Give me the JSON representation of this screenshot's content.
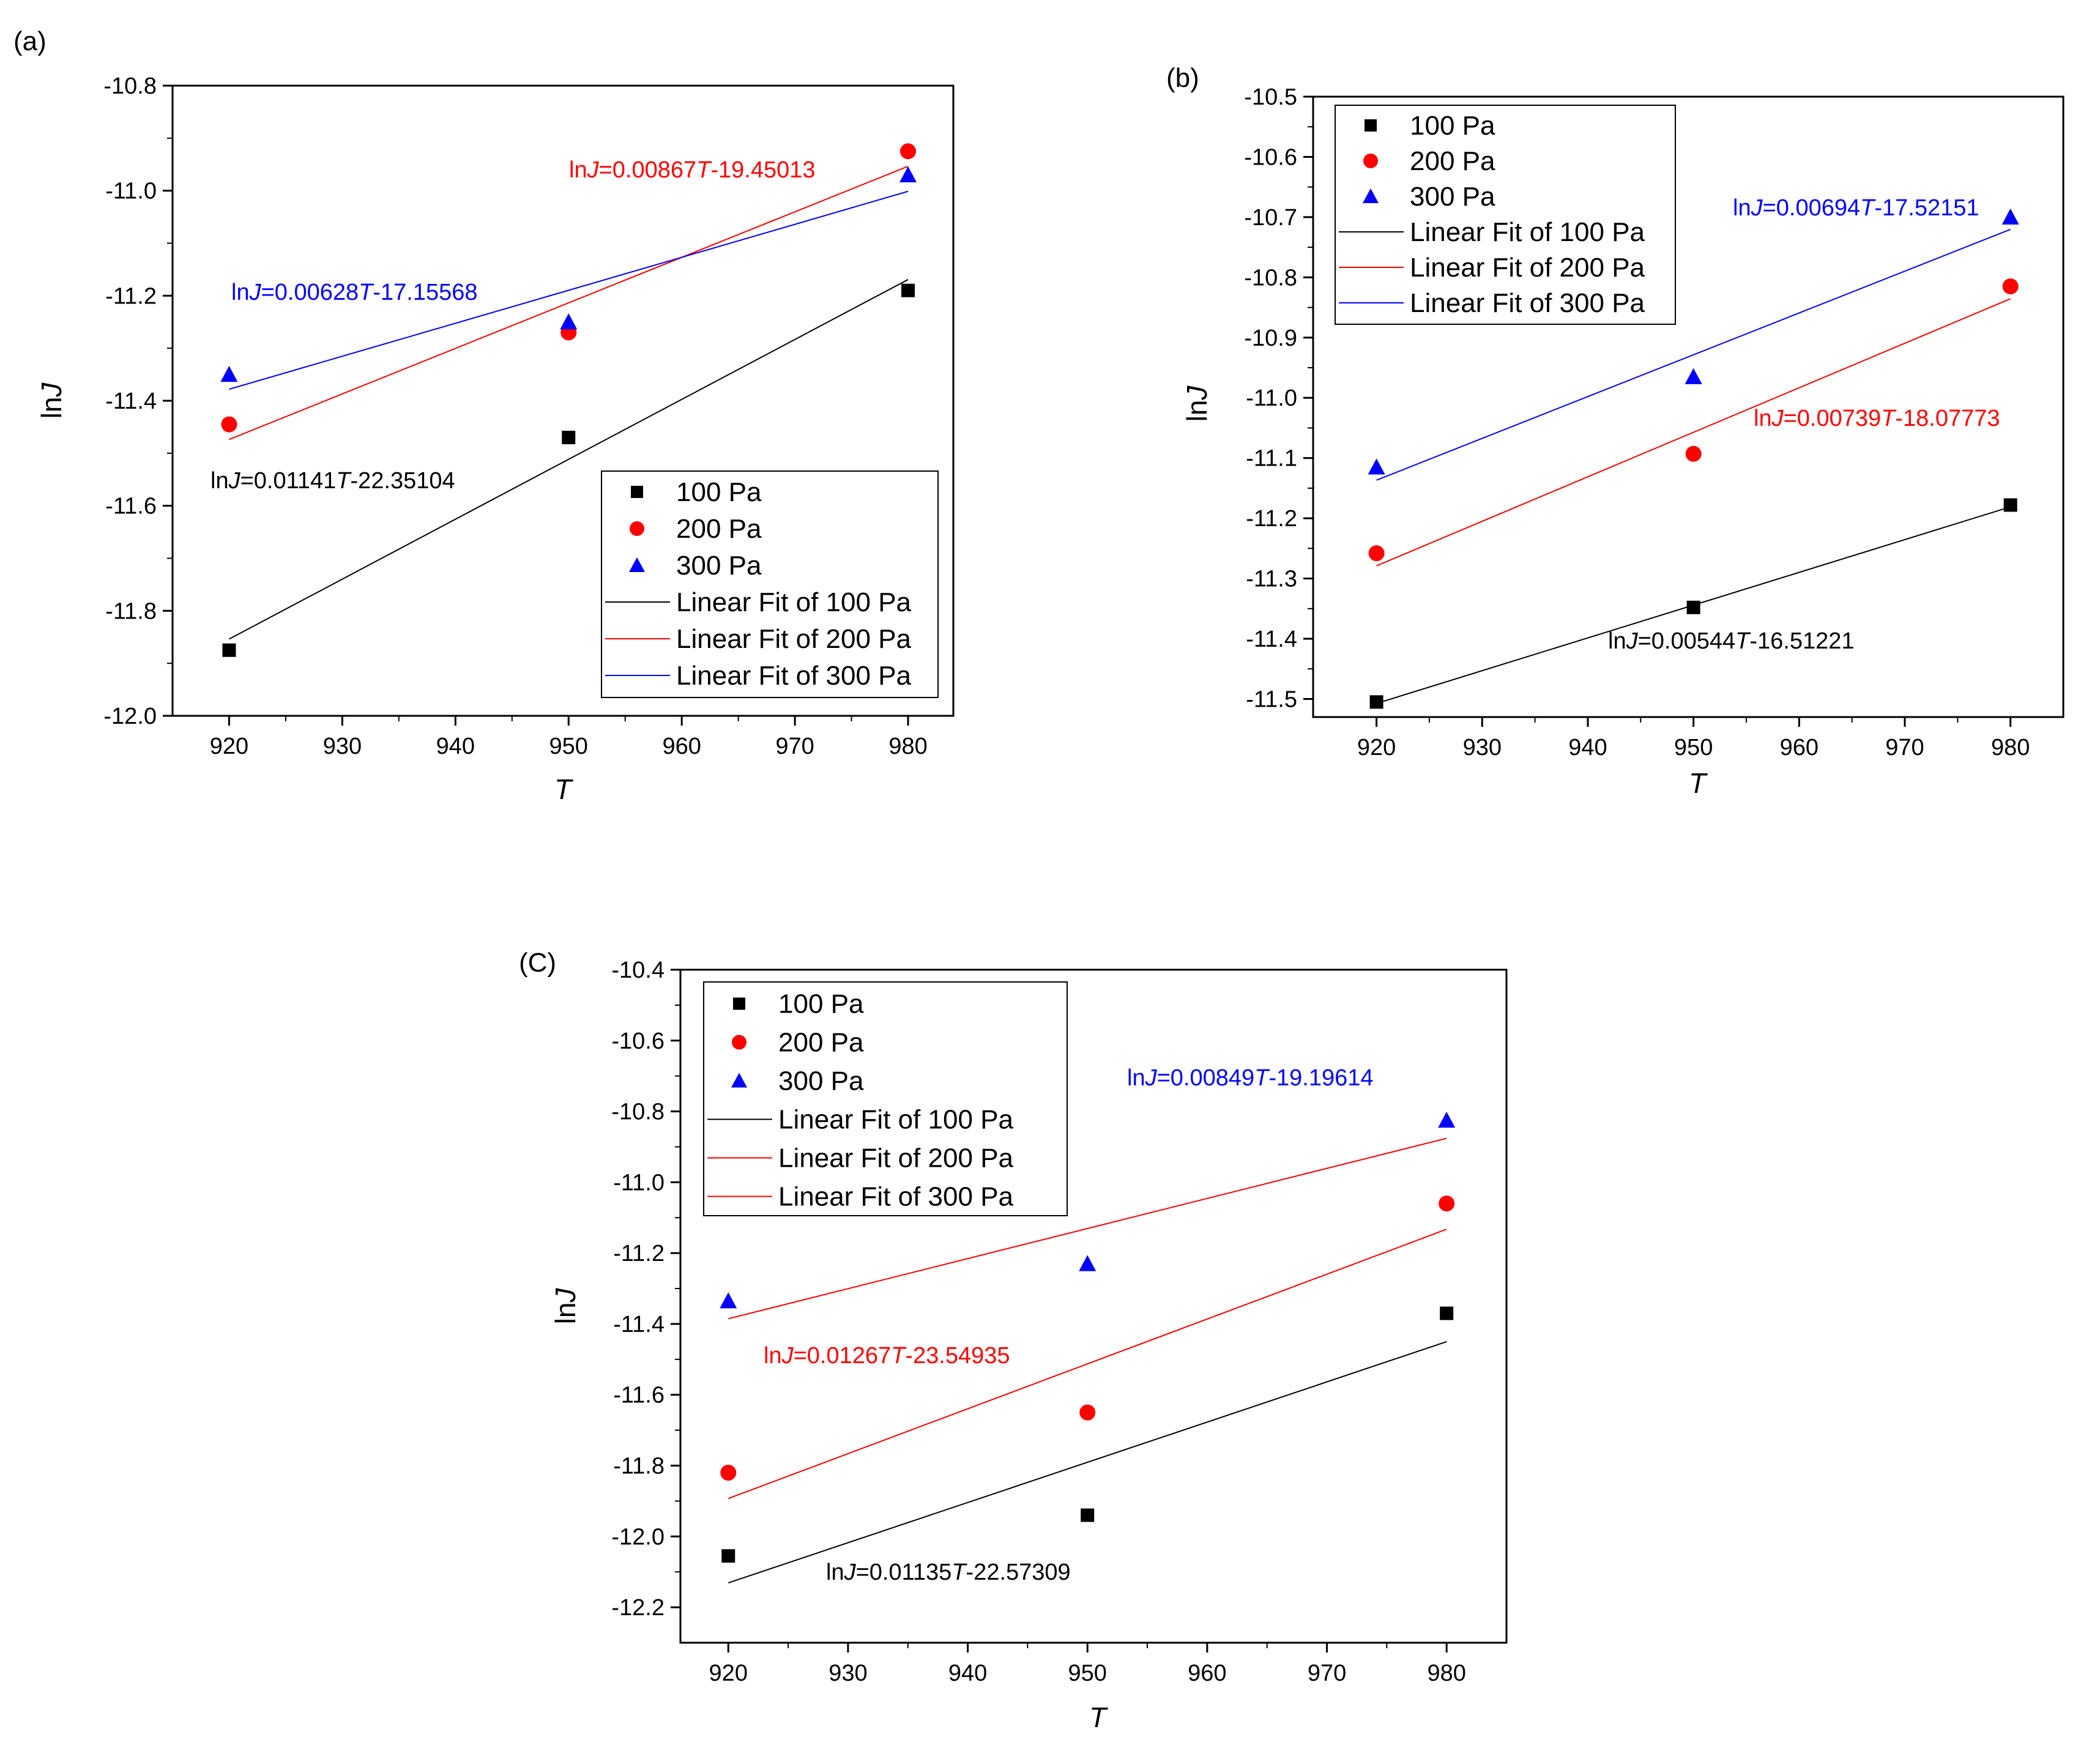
{
  "chart_data": [
    {
      "type": "scatter",
      "panel_label": "(a)",
      "xlabel": "T",
      "ylabel_main": "ln",
      "ylabel_italic": "J",
      "xlim": [
        915,
        984
      ],
      "ylim": [
        -12.0,
        -10.8
      ],
      "x_ticks": [
        920,
        930,
        940,
        950,
        960,
        970,
        980
      ],
      "y_ticks": [
        -12.0,
        -11.8,
        -11.6,
        -11.4,
        -11.2,
        -11.0,
        -10.8
      ],
      "legend_position": "bottom-right",
      "series": [
        {
          "name": "100 Pa",
          "marker": "square",
          "color": "#000000",
          "x": [
            920,
            950,
            980
          ],
          "y": [
            -11.875,
            -11.47,
            -11.19
          ]
        },
        {
          "name": "200 Pa",
          "marker": "circle",
          "color": "#ff0000",
          "x": [
            920,
            950,
            980
          ],
          "y": [
            -11.445,
            -11.27,
            -10.925
          ]
        },
        {
          "name": "300 Pa",
          "marker": "triangle",
          "color": "#0000ff",
          "x": [
            920,
            950,
            980
          ],
          "y": [
            -11.35,
            -11.25,
            -10.97
          ]
        }
      ],
      "fits": [
        {
          "name": "Linear Fit of 100 Pa",
          "color": "#000000",
          "slope": 0.01141,
          "intercept": -22.35104,
          "x_range": [
            920,
            980
          ]
        },
        {
          "name": "Linear Fit of 200 Pa",
          "color": "#ff0000",
          "slope": 0.00867,
          "intercept": -19.45013,
          "x_range": [
            920,
            980
          ]
        },
        {
          "name": "Linear Fit of 300 Pa",
          "color": "#0000ff",
          "slope": 0.00628,
          "intercept": -17.15568,
          "x_range": [
            920,
            980
          ]
        }
      ],
      "annotations": [
        {
          "prefix": "ln",
          "v1": "J",
          "mid": "=0.00867",
          "v2": "T",
          "suffix": "-19.45013",
          "color": "#ff0000"
        },
        {
          "prefix": "ln",
          "v1": "J",
          "mid": "=0.00628",
          "v2": "T",
          "suffix": "-17.15568",
          "color": "#0000ff"
        },
        {
          "prefix": "ln",
          "v1": "J",
          "mid": "=0.01141",
          "v2": "T",
          "suffix": "-22.35104",
          "color": "#000000"
        }
      ]
    },
    {
      "type": "scatter",
      "panel_label": "(b)",
      "xlabel": "T",
      "ylabel_main": "ln",
      "ylabel_italic": "J",
      "xlim": [
        914,
        985
      ],
      "ylim": [
        -11.53,
        -10.5
      ],
      "x_ticks": [
        920,
        930,
        940,
        950,
        960,
        970,
        980
      ],
      "y_ticks": [
        -11.5,
        -11.4,
        -11.3,
        -11.2,
        -11.1,
        -11.0,
        -10.9,
        -10.8,
        -10.7,
        -10.6,
        -10.5
      ],
      "legend_position": "top-left",
      "series": [
        {
          "name": "100 Pa",
          "marker": "square",
          "color": "#000000",
          "x": [
            920,
            950,
            980
          ],
          "y": [
            -11.505,
            -11.348,
            -11.178
          ]
        },
        {
          "name": "200 Pa",
          "marker": "circle",
          "color": "#ff0000",
          "x": [
            920,
            950,
            980
          ],
          "y": [
            -11.258,
            -11.093,
            -10.815
          ]
        },
        {
          "name": "300 Pa",
          "marker": "triangle",
          "color": "#0000ff",
          "x": [
            920,
            950,
            980
          ],
          "y": [
            -11.115,
            -10.965,
            -10.7
          ]
        }
      ],
      "fits": [
        {
          "name": "Linear Fit of 100 Pa",
          "color": "#000000",
          "slope": 0.00544,
          "intercept": -16.51221,
          "x_range": [
            920,
            980
          ]
        },
        {
          "name": "Linear Fit of 200 Pa",
          "color": "#ff0000",
          "slope": 0.00739,
          "intercept": -18.07773,
          "x_range": [
            920,
            980
          ]
        },
        {
          "name": "Linear Fit of 300 Pa",
          "color": "#0000ff",
          "slope": 0.00694,
          "intercept": -17.52151,
          "x_range": [
            920,
            980
          ]
        }
      ],
      "annotations": [
        {
          "prefix": "ln",
          "v1": "J",
          "mid": "=0.00694",
          "v2": "T",
          "suffix": "-17.52151",
          "color": "#0000ff"
        },
        {
          "prefix": "ln",
          "v1": "J",
          "mid": "=0.00739",
          "v2": "T",
          "suffix": "-18.07773",
          "color": "#ff0000"
        },
        {
          "prefix": "ln",
          "v1": "J",
          "mid": "=0.00544",
          "v2": "T",
          "suffix": "-16.51221",
          "color": "#000000"
        }
      ]
    },
    {
      "type": "scatter",
      "panel_label": "(C)",
      "xlabel": "T",
      "ylabel_main": "ln",
      "ylabel_italic": "J",
      "xlim": [
        916,
        985
      ],
      "ylim": [
        -12.3,
        -10.4
      ],
      "x_ticks": [
        920,
        930,
        940,
        950,
        960,
        970,
        980
      ],
      "y_ticks": [
        -12.2,
        -12.0,
        -11.8,
        -11.6,
        -11.4,
        -11.2,
        -11.0,
        -10.8,
        -10.6,
        -10.4
      ],
      "legend_position": "top-left",
      "series": [
        {
          "name": "100 Pa",
          "marker": "square",
          "color": "#000000",
          "x": [
            920,
            950,
            980
          ],
          "y": [
            -12.055,
            -11.94,
            -11.37
          ]
        },
        {
          "name": "200 Pa",
          "marker": "circle",
          "color": "#ff0000",
          "x": [
            920,
            950,
            980
          ],
          "y": [
            -11.82,
            -11.65,
            -11.06
          ]
        },
        {
          "name": "300 Pa",
          "marker": "triangle",
          "color": "#0000ff",
          "x": [
            920,
            950,
            980
          ],
          "y": [
            -11.335,
            -11.23,
            -10.825
          ]
        }
      ],
      "fits": [
        {
          "name": "Linear Fit of 100 Pa",
          "color": "#000000",
          "slope": 0.01135,
          "intercept": -22.57309,
          "x_range": [
            920,
            980
          ]
        },
        {
          "name": "Linear Fit of 200 Pa",
          "color": "#ff0000",
          "slope": 0.01267,
          "intercept": -23.54935,
          "x_range": [
            920,
            980
          ]
        },
        {
          "name": "Linear Fit of 300 Pa",
          "color": "#ff0000",
          "slope": 0.00849,
          "intercept": -19.19614,
          "x_range": [
            920,
            980
          ]
        }
      ],
      "annotations": [
        {
          "prefix": "ln",
          "v1": "J",
          "mid": "=0.00849",
          "v2": "T",
          "suffix": "-19.19614",
          "color": "#0000ff"
        },
        {
          "prefix": "ln",
          "v1": "J",
          "mid": "=0.01267",
          "v2": "T",
          "suffix": "-23.54935",
          "color": "#ff0000"
        },
        {
          "prefix": "ln",
          "v1": "J",
          "mid": "=0.01135",
          "v2": "T",
          "suffix": "-22.57309",
          "color": "#000000"
        }
      ]
    }
  ]
}
